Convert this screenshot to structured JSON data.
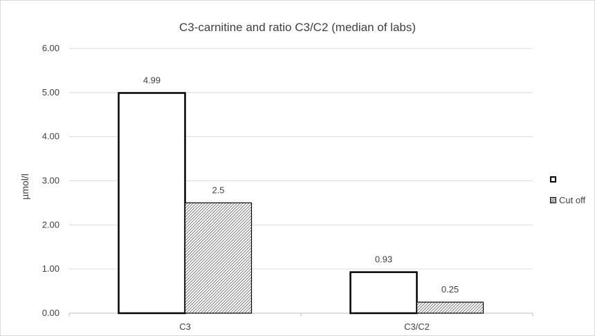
{
  "chart_data": {
    "type": "bar",
    "title": "C3-carnitine and ratio C3/C2 (median of labs)",
    "xlabel": "",
    "ylabel": "µmol/l",
    "categories": [
      "C3",
      "C3/C2"
    ],
    "series": [
      {
        "name": "",
        "values": [
          4.99,
          0.93
        ],
        "data_labels": [
          "4.99",
          "0.93"
        ],
        "fill": "white"
      },
      {
        "name": "Cut off",
        "values": [
          2.5,
          0.25
        ],
        "data_labels": [
          "2.5",
          "0.25"
        ],
        "fill": "hatched"
      }
    ],
    "ylim": [
      0,
      6
    ],
    "y_ticks": [
      "0.00",
      "1.00",
      "2.00",
      "3.00",
      "4.00",
      "5.00",
      "6.00"
    ],
    "grid": true,
    "legend_position": "right"
  },
  "colors": {
    "bar_outline": "#000000",
    "grid": "#d9d9d9",
    "text": "#404040"
  }
}
